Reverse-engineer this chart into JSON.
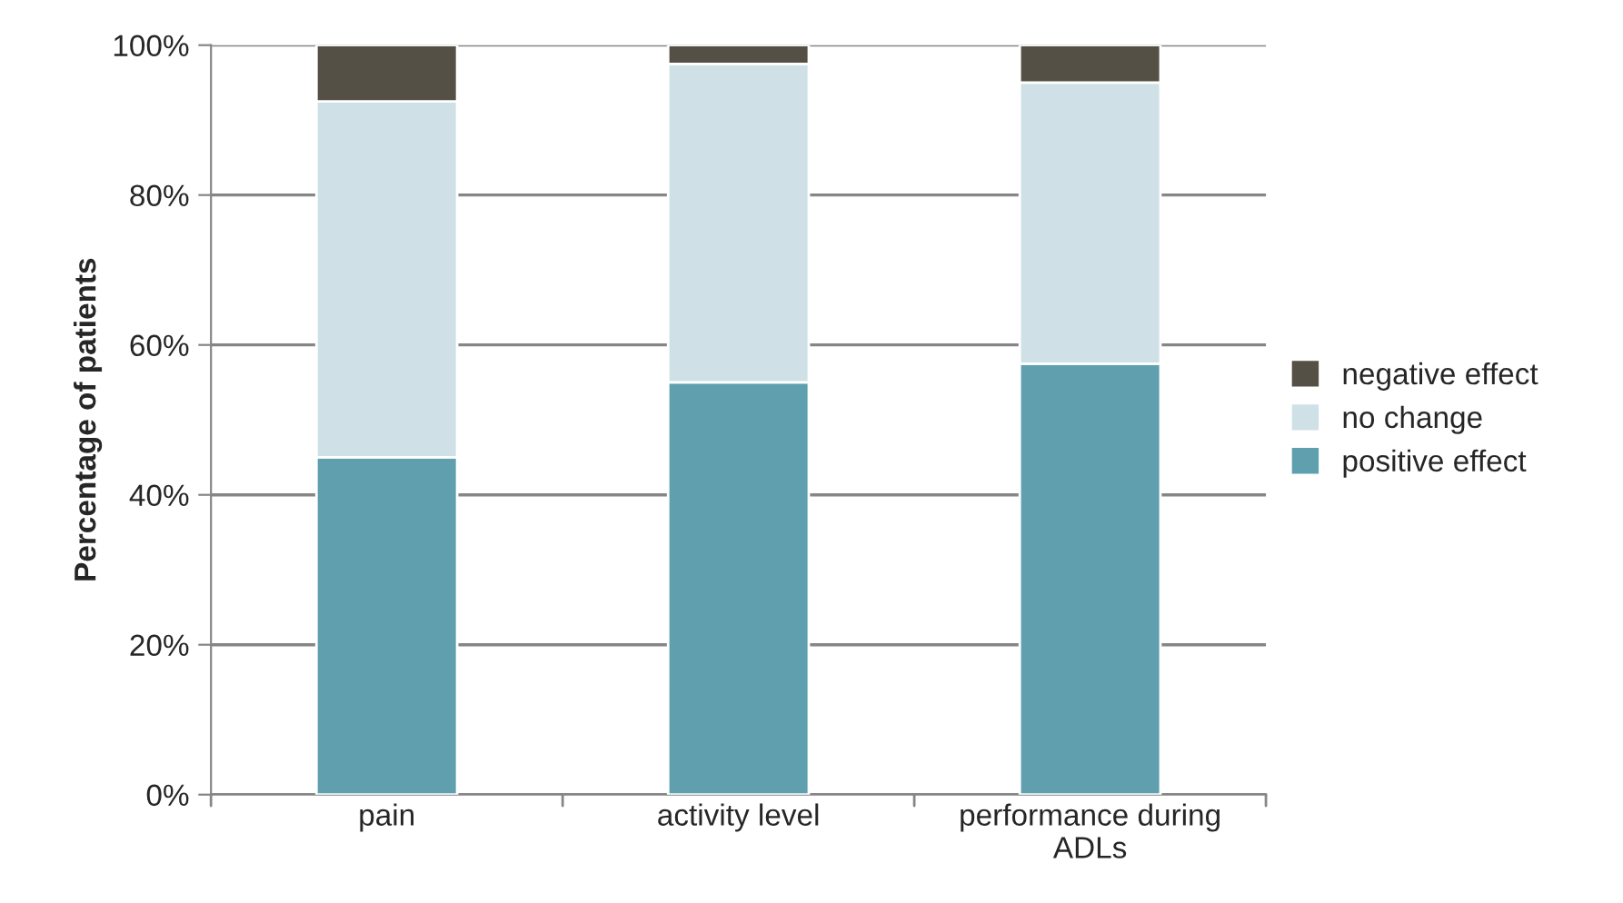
{
  "chart_data": {
    "type": "bar",
    "stacked": true,
    "ylabel": "Percentage of patients",
    "categories": [
      "pain",
      "activity level",
      "performance during\nADLs"
    ],
    "series": [
      {
        "name": "positive effect",
        "color": "#5f9fae",
        "values": [
          45,
          55,
          57.5
        ]
      },
      {
        "name": "no change",
        "color": "#cfe1e7",
        "values": [
          47.5,
          42.5,
          37.5
        ]
      },
      {
        "name": "negative effect",
        "color": "#555045",
        "values": [
          7.5,
          2.5,
          5
        ]
      }
    ],
    "ylim": [
      0,
      100
    ],
    "yticks": [
      {
        "value": 0,
        "label": "0%"
      },
      {
        "value": 20,
        "label": "20%"
      },
      {
        "value": 40,
        "label": "40%"
      },
      {
        "value": 60,
        "label": "60%"
      },
      {
        "value": 80,
        "label": "80%"
      },
      {
        "value": 100,
        "label": "100%"
      }
    ],
    "grid": "y",
    "legend": "right"
  }
}
